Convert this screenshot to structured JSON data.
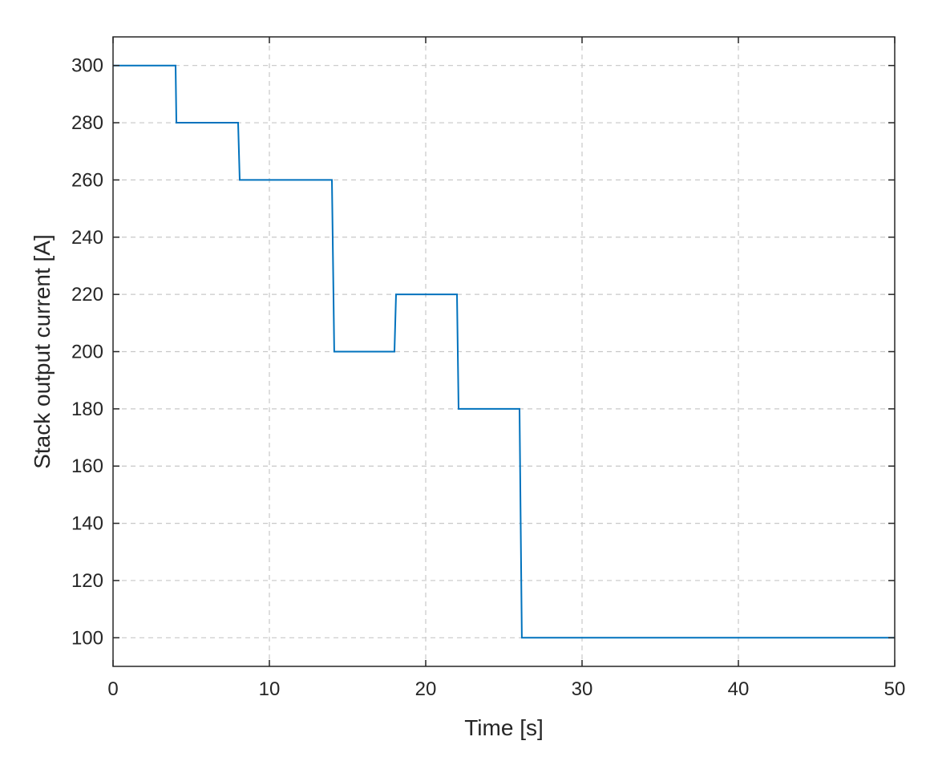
{
  "chart_data": {
    "type": "line",
    "title": "",
    "xlabel": "Time [s]",
    "ylabel": "Stack output current [A]",
    "xlim": [
      0,
      50
    ],
    "ylim": [
      90,
      310
    ],
    "xticks": [
      0,
      10,
      20,
      30,
      40,
      50
    ],
    "yticks": [
      100,
      120,
      140,
      160,
      180,
      200,
      220,
      240,
      260,
      280,
      300
    ],
    "grid": true,
    "grid_style": "dashed",
    "series": [
      {
        "color": "#0072BD",
        "x": [
          0,
          4,
          4.05,
          8,
          8.1,
          14,
          14.15,
          18,
          18.1,
          22,
          22.1,
          26,
          26.15,
          50
        ],
        "y": [
          300,
          300,
          280,
          280,
          260,
          260,
          200,
          200,
          220,
          220,
          180,
          180,
          100,
          100
        ]
      }
    ]
  }
}
